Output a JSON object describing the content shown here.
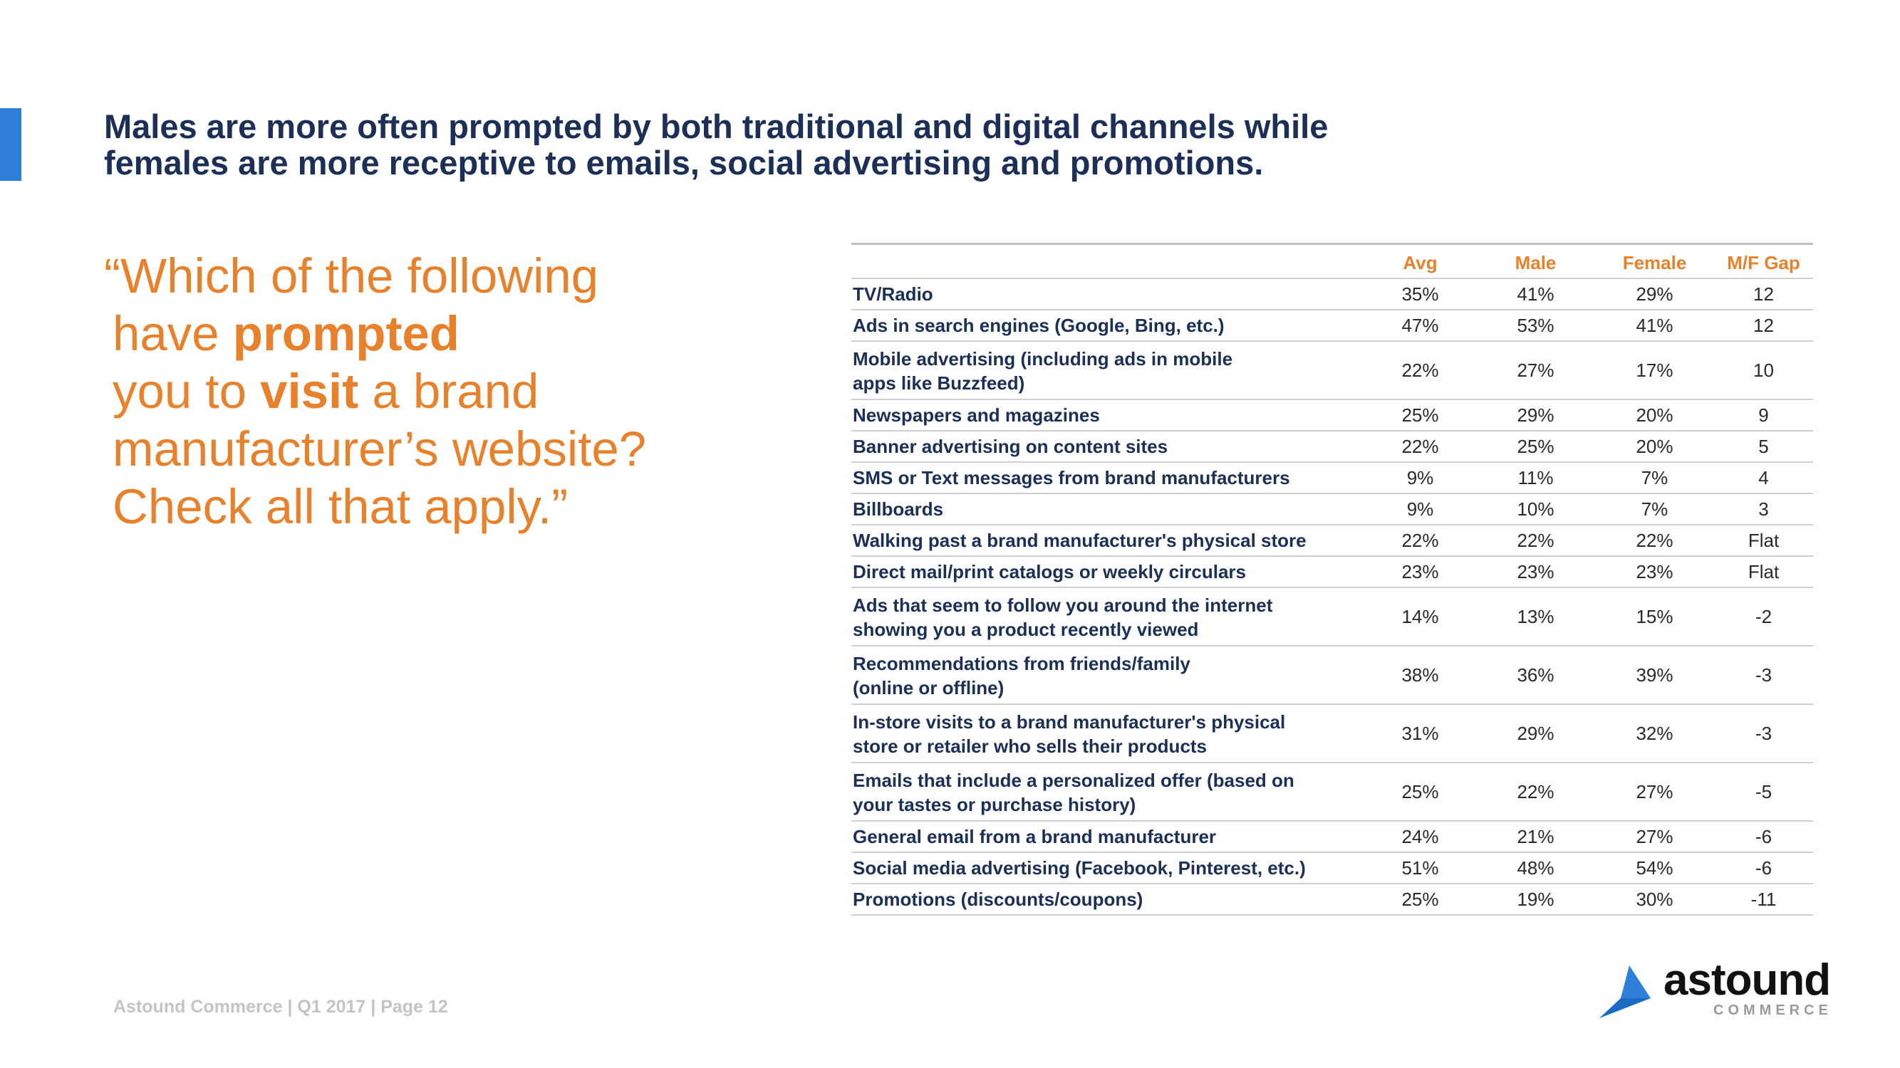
{
  "headline": {
    "line1": "Males are more often prompted by both traditional and digital channels while",
    "line2": "females are more receptive to emails, social advertising and promotions."
  },
  "question": {
    "l1": "“Which of the following",
    "l2_pre": "have ",
    "l2_bold": "prompted",
    "l3_pre": "you to ",
    "l3_bold": "visit",
    "l3_post": " a brand",
    "l4": "manufacturer’s website?",
    "l5": "Check all that apply.”"
  },
  "table": {
    "headers": [
      "Avg",
      "Male",
      "Female",
      "M/F Gap"
    ],
    "rows": [
      {
        "label": "TV/Radio",
        "avg": "35%",
        "male": "41%",
        "female": "29%",
        "gap": "12"
      },
      {
        "label": "Ads in search engines (Google, Bing, etc.)",
        "avg": "47%",
        "male": "53%",
        "female": "41%",
        "gap": "12"
      },
      {
        "label": "Mobile advertising (including ads in mobile",
        "label2": "apps like Buzzfeed)",
        "avg": "22%",
        "male": "27%",
        "female": "17%",
        "gap": "10"
      },
      {
        "label": "Newspapers and magazines",
        "avg": "25%",
        "male": "29%",
        "female": "20%",
        "gap": "9"
      },
      {
        "label": "Banner advertising on content sites",
        "avg": "22%",
        "male": "25%",
        "female": "20%",
        "gap": "5"
      },
      {
        "label": "SMS or Text messages from brand manufacturers",
        "avg": "9%",
        "male": "11%",
        "female": "7%",
        "gap": "4"
      },
      {
        "label": "Billboards",
        "avg": "9%",
        "male": "10%",
        "female": "7%",
        "gap": "3"
      },
      {
        "label": "Walking past a brand manufacturer's physical store",
        "avg": "22%",
        "male": "22%",
        "female": "22%",
        "gap": "Flat"
      },
      {
        "label": "Direct mail/print catalogs or weekly circulars",
        "avg": "23%",
        "male": "23%",
        "female": "23%",
        "gap": "Flat"
      },
      {
        "label": "Ads that seem to follow you around the internet",
        "label2": "showing you a product recently viewed",
        "avg": "14%",
        "male": "13%",
        "female": "15%",
        "gap": "-2"
      },
      {
        "label": "Recommendations from friends/family",
        "label2": "(online or offline)",
        "avg": "38%",
        "male": "36%",
        "female": "39%",
        "gap": "-3"
      },
      {
        "label": "In-store visits to a brand manufacturer's physical",
        "label2": "store or retailer who sells their products",
        "avg": "31%",
        "male": "29%",
        "female": "32%",
        "gap": "-3"
      },
      {
        "label": "Emails that include a personalized offer (based on",
        "label2": "your tastes or purchase history)",
        "avg": "25%",
        "male": "22%",
        "female": "27%",
        "gap": "-5"
      },
      {
        "label": "General email from a brand manufacturer",
        "avg": "24%",
        "male": "21%",
        "female": "27%",
        "gap": "-6"
      },
      {
        "label": "Social media advertising (Facebook, Pinterest, etc.)",
        "avg": "51%",
        "male": "48%",
        "female": "54%",
        "gap": "-6"
      },
      {
        "label": "Promotions (discounts/coupons)",
        "avg": "25%",
        "male": "19%",
        "female": "30%",
        "gap": "-11"
      }
    ]
  },
  "footer": {
    "text": "Astound Commerce | Q1 2017 | Page 12"
  },
  "logo": {
    "word": "astound",
    "sub": "COMMERCE",
    "mark_icon": "triangle-mark-icon"
  },
  "colors": {
    "navy": "#1b2f57",
    "orange": "#e8812b",
    "accent_blue": "#2f7fd9",
    "footer_gray": "#c4c4c4"
  }
}
